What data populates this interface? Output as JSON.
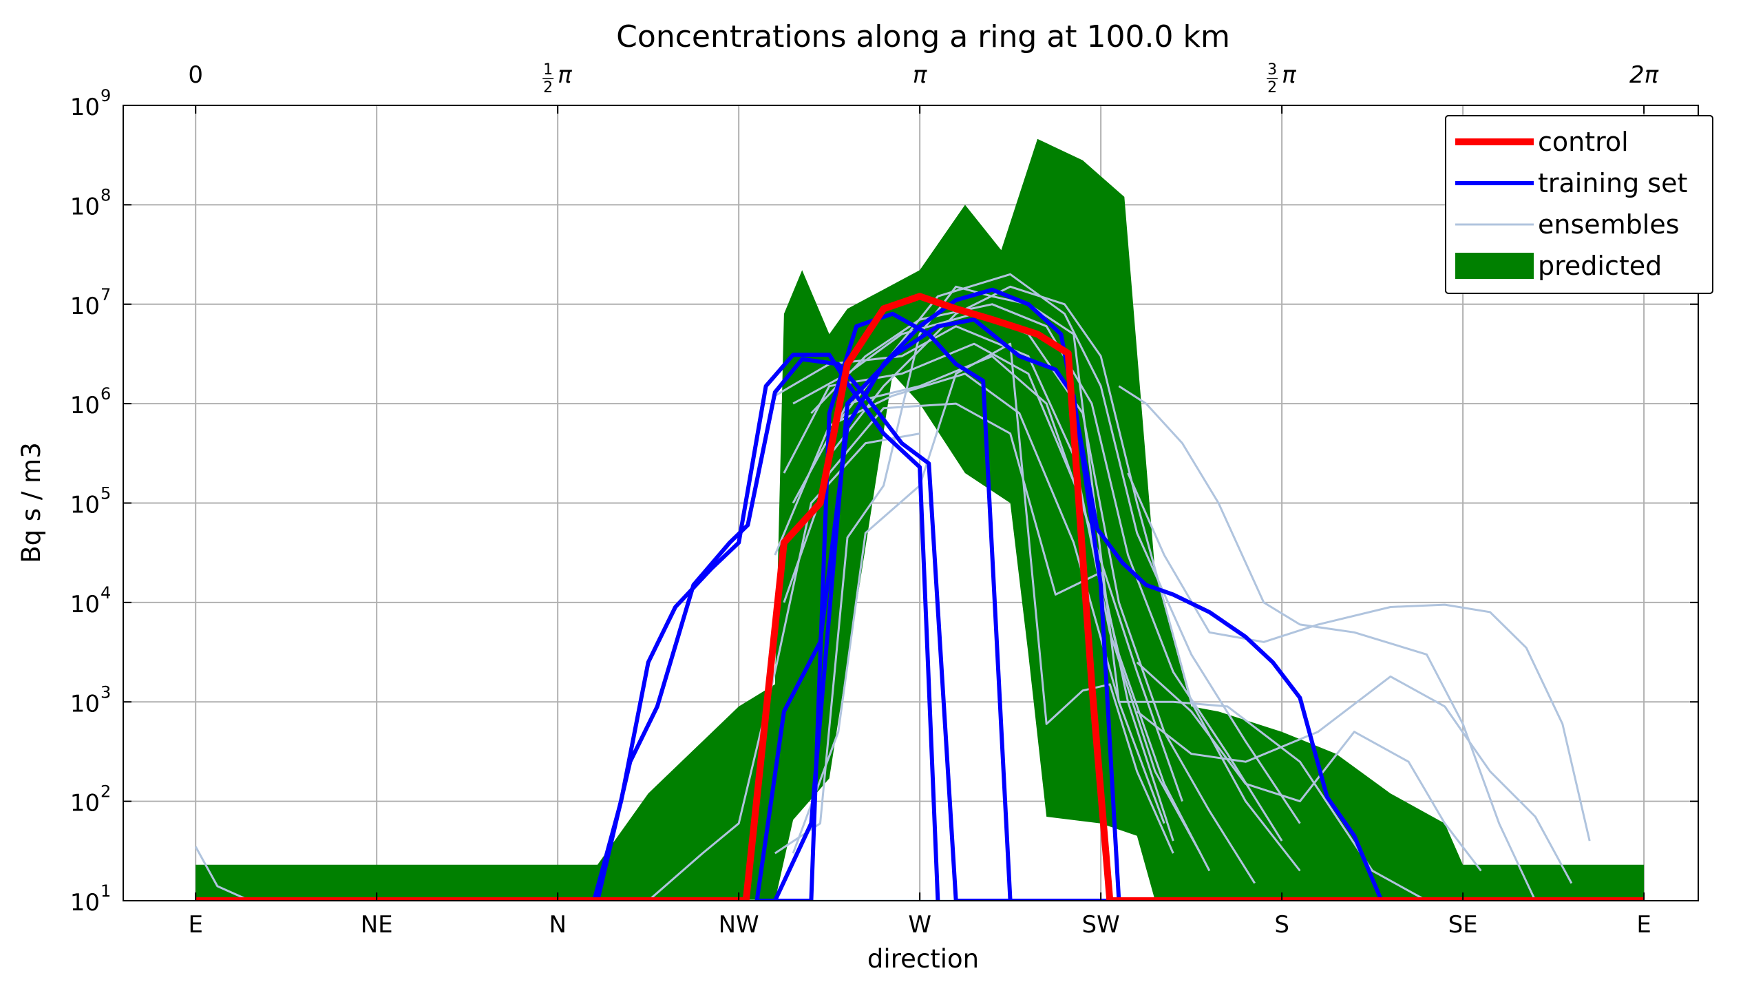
{
  "chart_data": {
    "type": "line",
    "title": "Concentrations along a ring at 100.0 km",
    "xlabel": "direction",
    "ylabel": "Bq s / m3",
    "yscale": "log",
    "ylim": [
      10,
      1000000000
    ],
    "xlim": [
      -0.4,
      8.3
    ],
    "x_tick_labels": [
      "E",
      "NE",
      "N",
      "NW",
      "W",
      "SW",
      "S",
      "SE",
      "E"
    ],
    "x_tick_values": [
      0,
      1,
      2,
      3,
      4,
      5,
      6,
      7,
      8
    ],
    "top_axis_ticks": [
      {
        "x": 0,
        "pre": "0",
        "num": "",
        "den": "",
        "post": ""
      },
      {
        "x": 2,
        "pre": "",
        "num": "1",
        "den": "2",
        "post": "π"
      },
      {
        "x": 4,
        "pre": "π",
        "num": "",
        "den": "",
        "post": ""
      },
      {
        "x": 6,
        "pre": "",
        "num": "3",
        "den": "2",
        "post": "π"
      },
      {
        "x": 8,
        "pre": "2π",
        "num": "",
        "den": "",
        "post": ""
      }
    ],
    "y_tick_exponents": [
      1,
      2,
      3,
      4,
      5,
      6,
      7,
      8,
      9
    ],
    "y_tick_base": "10",
    "grid": true,
    "legend_position": "top-right",
    "legend": [
      {
        "label": "control",
        "color": "#ff0000",
        "kind": "thick-line"
      },
      {
        "label": "training set",
        "color": "#0000ff",
        "kind": "line"
      },
      {
        "label": "ensembles",
        "color": "#b0c4de",
        "kind": "thin-line"
      },
      {
        "label": "predicted",
        "color": "#008000",
        "kind": "patch"
      }
    ],
    "predicted_band": {
      "color": "#008000",
      "upper": [
        [
          0,
          23
        ],
        [
          1,
          23
        ],
        [
          2,
          23
        ],
        [
          2.22,
          23
        ],
        [
          2.5,
          120
        ],
        [
          3,
          900
        ],
        [
          3.2,
          1500
        ],
        [
          3.25,
          8000000
        ],
        [
          3.35,
          22000000
        ],
        [
          3.5,
          5000000
        ],
        [
          3.6,
          9000000
        ],
        [
          4,
          22000000
        ],
        [
          4.25,
          100000000
        ],
        [
          4.45,
          35000000
        ],
        [
          4.65,
          460000000
        ],
        [
          4.9,
          280000000
        ],
        [
          5.13,
          120000000
        ],
        [
          5.3,
          20000
        ],
        [
          5.5,
          900
        ],
        [
          5.65,
          800
        ],
        [
          6,
          500
        ],
        [
          6.3,
          300
        ],
        [
          6.6,
          120
        ],
        [
          6.9,
          60
        ],
        [
          7,
          23
        ],
        [
          8,
          23
        ]
      ],
      "lower": [
        [
          8,
          10
        ],
        [
          7,
          10
        ],
        [
          6.9,
          10
        ],
        [
          6.6,
          10
        ],
        [
          6.3,
          10
        ],
        [
          6,
          10
        ],
        [
          5.7,
          10
        ],
        [
          5.3,
          10
        ],
        [
          5.2,
          45
        ],
        [
          5,
          60
        ],
        [
          4.7,
          70
        ],
        [
          4.6,
          3000
        ],
        [
          4.5,
          100000
        ],
        [
          4.25,
          200000
        ],
        [
          4,
          1000000
        ],
        [
          3.85,
          2000000
        ],
        [
          3.5,
          170
        ],
        [
          3.3,
          65
        ],
        [
          3.2,
          10
        ],
        [
          3,
          10
        ],
        [
          2.5,
          10
        ],
        [
          2,
          10
        ],
        [
          1,
          10
        ],
        [
          0,
          10
        ]
      ]
    },
    "control": [
      [
        0,
        10
      ],
      [
        1,
        10
      ],
      [
        2,
        10
      ],
      [
        3,
        10
      ],
      [
        3.04,
        10
      ],
      [
        3.25,
        40000
      ],
      [
        3.45,
        100000
      ],
      [
        3.6,
        2500000
      ],
      [
        3.8,
        9000000
      ],
      [
        4,
        12000000
      ],
      [
        4.2,
        9000000
      ],
      [
        4.4,
        7000000
      ],
      [
        4.65,
        5000000
      ],
      [
        4.82,
        3200000
      ],
      [
        4.95,
        1500
      ],
      [
        5.05,
        10
      ],
      [
        6,
        10
      ],
      [
        7,
        10
      ],
      [
        8,
        10
      ]
    ],
    "training_set": [
      [
        [
          0,
          10
        ],
        [
          2.2,
          10
        ],
        [
          2.35,
          100
        ],
        [
          2.5,
          2500
        ],
        [
          2.65,
          9000
        ],
        [
          2.85,
          22000
        ],
        [
          3.0,
          40000
        ],
        [
          3.15,
          1500000
        ],
        [
          3.3,
          3100000
        ],
        [
          3.5,
          3100000
        ],
        [
          3.6,
          1600000
        ],
        [
          3.8,
          500000
        ],
        [
          4.0,
          230000
        ],
        [
          4.1,
          10
        ]
      ],
      [
        [
          0,
          10
        ],
        [
          2.22,
          10
        ],
        [
          2.4,
          250
        ],
        [
          2.55,
          900
        ],
        [
          2.75,
          15000
        ],
        [
          2.95,
          40000
        ],
        [
          3.05,
          60000
        ],
        [
          3.2,
          1300000
        ],
        [
          3.35,
          2800000
        ],
        [
          3.55,
          2500000
        ],
        [
          3.7,
          1200000
        ],
        [
          3.9,
          400000
        ],
        [
          4.05,
          250000
        ],
        [
          4.2,
          10
        ],
        [
          8,
          10
        ]
      ],
      [
        [
          3.1,
          10
        ],
        [
          3.4,
          10
        ],
        [
          3.5,
          800000
        ],
        [
          3.65,
          6000000
        ],
        [
          3.85,
          8000000
        ],
        [
          4.05,
          5000000
        ],
        [
          4.2,
          2500000
        ],
        [
          4.35,
          1700000
        ],
        [
          4.5,
          10
        ]
      ],
      [
        [
          3.1,
          10
        ],
        [
          3.25,
          800
        ],
        [
          3.45,
          4000
        ],
        [
          3.6,
          600000
        ],
        [
          3.8,
          2500000
        ],
        [
          4.0,
          6000000
        ],
        [
          4.2,
          11000000
        ],
        [
          4.4,
          14000000
        ],
        [
          4.6,
          10000000
        ],
        [
          4.78,
          5000000
        ],
        [
          4.98,
          55000
        ],
        [
          5.12,
          25000
        ],
        [
          5.25,
          15000
        ],
        [
          5.4,
          12000
        ],
        [
          5.6,
          8000
        ],
        [
          5.8,
          4500
        ],
        [
          5.95,
          2500
        ],
        [
          6.1,
          1100
        ],
        [
          6.25,
          110
        ],
        [
          6.4,
          45
        ],
        [
          6.55,
          10
        ],
        [
          8,
          10
        ]
      ],
      [
        [
          3.2,
          10
        ],
        [
          3.4,
          60
        ],
        [
          3.6,
          1000000
        ],
        [
          3.85,
          3000000
        ],
        [
          4.1,
          6000000
        ],
        [
          4.3,
          7000000
        ],
        [
          4.55,
          3000000
        ],
        [
          4.75,
          2200000
        ],
        [
          4.85,
          1200000
        ],
        [
          5.0,
          15000
        ],
        [
          5.1,
          10
        ]
      ]
    ],
    "ensembles": [
      [
        [
          0,
          35
        ],
        [
          0.12,
          14
        ],
        [
          0.3,
          10
        ],
        [
          8,
          10
        ]
      ],
      [
        [
          3.2,
          30
        ],
        [
          3.45,
          60
        ],
        [
          3.6,
          45000
        ],
        [
          3.8,
          150000
        ],
        [
          4.0,
          5000000
        ],
        [
          4.2,
          15000000
        ],
        [
          4.4,
          12000000
        ],
        [
          4.6,
          10000000
        ],
        [
          4.85,
          5000000
        ],
        [
          5.1,
          1000
        ],
        [
          5.4,
          1000
        ],
        [
          5.7,
          900
        ],
        [
          6.1,
          250
        ],
        [
          6.5,
          20
        ],
        [
          6.8,
          10
        ]
      ],
      [
        [
          5.1,
          1500000
        ],
        [
          5.25,
          1000000
        ],
        [
          5.45,
          400000
        ],
        [
          5.65,
          100000
        ],
        [
          5.9,
          10000
        ],
        [
          6.1,
          6000
        ],
        [
          6.4,
          5000
        ],
        [
          6.8,
          3000
        ],
        [
          7.0,
          600
        ],
        [
          7.2,
          60
        ],
        [
          7.4,
          10
        ]
      ],
      [
        [
          5.15,
          200000
        ],
        [
          5.35,
          30000
        ],
        [
          5.6,
          5000
        ],
        [
          5.9,
          4000
        ],
        [
          6.2,
          6000
        ],
        [
          6.6,
          9000
        ],
        [
          6.9,
          9500
        ],
        [
          7.15,
          8000
        ],
        [
          7.35,
          3500
        ],
        [
          7.55,
          600
        ],
        [
          7.7,
          40
        ]
      ],
      [
        [
          5.2,
          800
        ],
        [
          5.5,
          300
        ],
        [
          5.8,
          250
        ],
        [
          6.2,
          500
        ],
        [
          6.6,
          1800
        ],
        [
          6.9,
          900
        ],
        [
          7.15,
          200
        ],
        [
          7.4,
          70
        ],
        [
          7.6,
          15
        ]
      ],
      [
        [
          5.2,
          2500
        ],
        [
          5.5,
          800
        ],
        [
          5.8,
          150
        ],
        [
          6.1,
          100
        ],
        [
          6.4,
          500
        ],
        [
          6.7,
          250
        ],
        [
          6.9,
          60
        ],
        [
          7.1,
          20
        ]
      ],
      [
        [
          3.5,
          300000
        ],
        [
          3.8,
          1500000
        ],
        [
          4.2,
          8000000
        ],
        [
          4.5,
          15000000
        ],
        [
          4.8,
          10000000
        ],
        [
          5.0,
          3000000
        ],
        [
          5.2,
          100000
        ],
        [
          5.5,
          1000
        ],
        [
          5.8,
          100
        ],
        [
          6.1,
          20
        ]
      ],
      [
        [
          3.5,
          500000
        ],
        [
          3.8,
          2500000
        ],
        [
          4.1,
          12000000
        ],
        [
          4.5,
          20000000
        ],
        [
          4.8,
          8000000
        ],
        [
          5.0,
          1500000
        ],
        [
          5.2,
          50000
        ],
        [
          5.5,
          3000
        ],
        [
          5.8,
          400
        ],
        [
          6.1,
          60
        ]
      ],
      [
        [
          3.4,
          800000
        ],
        [
          3.7,
          3000000
        ],
        [
          4.0,
          7000000
        ],
        [
          4.4,
          10000000
        ],
        [
          4.7,
          6000000
        ],
        [
          4.95,
          1000000
        ],
        [
          5.15,
          30000
        ],
        [
          5.4,
          2000
        ],
        [
          5.7,
          300
        ],
        [
          6.0,
          40
        ]
      ],
      [
        [
          3.3,
          1000000
        ],
        [
          3.6,
          2000000
        ],
        [
          3.9,
          5000000
        ],
        [
          4.3,
          8000000
        ],
        [
          4.6,
          5000000
        ],
        [
          4.9,
          800000
        ],
        [
          5.1,
          10000
        ],
        [
          5.35,
          500
        ],
        [
          5.6,
          80
        ],
        [
          5.85,
          15
        ]
      ],
      [
        [
          3.2,
          1200000
        ],
        [
          3.5,
          2500000
        ],
        [
          3.9,
          3000000
        ],
        [
          4.2,
          6000000
        ],
        [
          4.6,
          3000000
        ],
        [
          4.85,
          300000
        ],
        [
          5.05,
          5000
        ],
        [
          5.3,
          200
        ],
        [
          5.55,
          30
        ]
      ],
      [
        [
          3.25,
          200000
        ],
        [
          3.5,
          1500000
        ],
        [
          3.9,
          2000000
        ],
        [
          4.3,
          4000000
        ],
        [
          4.6,
          2000000
        ],
        [
          4.9,
          100000
        ],
        [
          5.1,
          3000
        ],
        [
          5.35,
          150
        ],
        [
          5.6,
          20
        ]
      ],
      [
        [
          3.3,
          100000
        ],
        [
          3.6,
          1000000
        ],
        [
          4.0,
          1500000
        ],
        [
          4.4,
          3000000
        ],
        [
          4.7,
          1000000
        ],
        [
          4.95,
          50000
        ],
        [
          5.2,
          2000
        ],
        [
          5.45,
          100
        ]
      ],
      [
        [
          3.2,
          30000
        ],
        [
          3.5,
          600000
        ],
        [
          3.85,
          1200000
        ],
        [
          4.25,
          2000000
        ],
        [
          4.55,
          800000
        ],
        [
          4.85,
          40000
        ],
        [
          5.1,
          1000
        ],
        [
          5.35,
          60
        ]
      ],
      [
        [
          3.3,
          30
        ],
        [
          3.55,
          500
        ],
        [
          3.7,
          50000
        ],
        [
          4.0,
          150000
        ],
        [
          4.2,
          2000000
        ],
        [
          4.5,
          4000000
        ],
        [
          4.7,
          600
        ],
        [
          4.9,
          1300
        ],
        [
          5.05,
          1500
        ],
        [
          5.2,
          200
        ],
        [
          5.4,
          30
        ]
      ],
      [
        [
          3.25,
          10000
        ],
        [
          3.5,
          200000
        ],
        [
          3.8,
          900000
        ],
        [
          4.2,
          1000000
        ],
        [
          4.5,
          500000
        ],
        [
          4.75,
          12000
        ],
        [
          5.0,
          20000
        ],
        [
          5.15,
          1000
        ],
        [
          5.4,
          40
        ]
      ],
      [
        [
          2.5,
          10
        ],
        [
          2.8,
          30
        ],
        [
          3.0,
          60
        ],
        [
          3.2,
          2000
        ],
        [
          3.4,
          100000
        ],
        [
          3.7,
          400000
        ],
        [
          4.0,
          500000
        ]
      ]
    ]
  }
}
